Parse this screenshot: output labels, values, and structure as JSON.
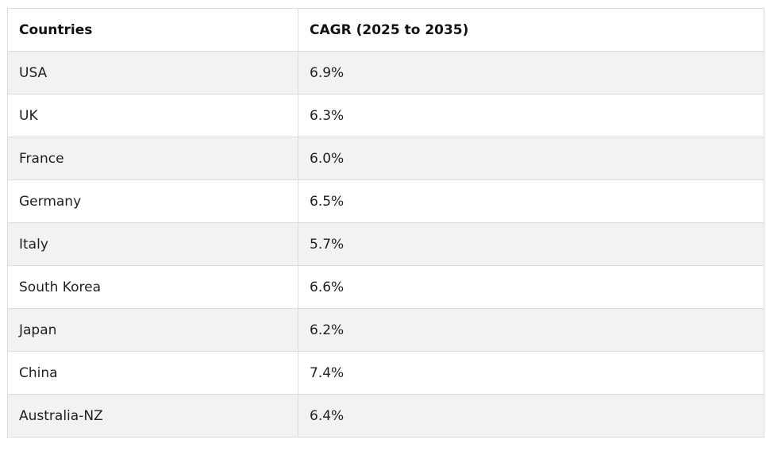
{
  "table": {
    "headers": [
      "Countries",
      "CAGR (2025 to 2035)"
    ],
    "rows": [
      [
        "USA",
        "6.9%"
      ],
      [
        "UK",
        "6.3%"
      ],
      [
        "France",
        "6.0%"
      ],
      [
        "Germany",
        "6.5%"
      ],
      [
        "Italy",
        "5.7%"
      ],
      [
        "South Korea",
        "6.6%"
      ],
      [
        "Japan",
        "6.2%"
      ],
      [
        "China",
        "7.4%"
      ],
      [
        "Australia-NZ",
        "6.4%"
      ]
    ]
  },
  "colors": {
    "header_bg": "#ffffff",
    "row_alt_bg": "#f2f2f2",
    "row_bg": "#ffffff",
    "border": "#dcdcdc"
  }
}
